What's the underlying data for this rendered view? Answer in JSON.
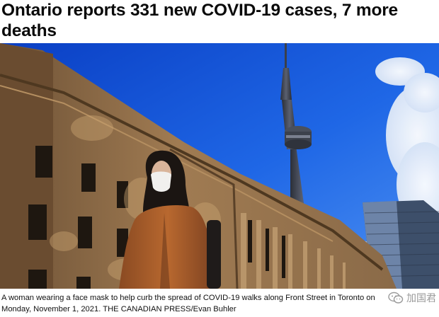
{
  "article": {
    "headline": "Ontario reports 331 new COVID-19 cases, 7 more deaths",
    "photo": {
      "subject": "woman-wearing-face-mask-near-cn-tower",
      "colors": {
        "sky": "#1e62e0",
        "building": "#9a7650",
        "coat": "#a65a2a",
        "tower": "#3a3f4a"
      }
    },
    "caption": "A woman wearing a face mask to help curb the spread of COVID-19 walks along Front Street in Toronto on Monday, November 1, 2021. THE CANADIAN PRESS/Evan Buhler"
  },
  "watermark": {
    "text": "加国君",
    "icon": "wechat-icon"
  }
}
